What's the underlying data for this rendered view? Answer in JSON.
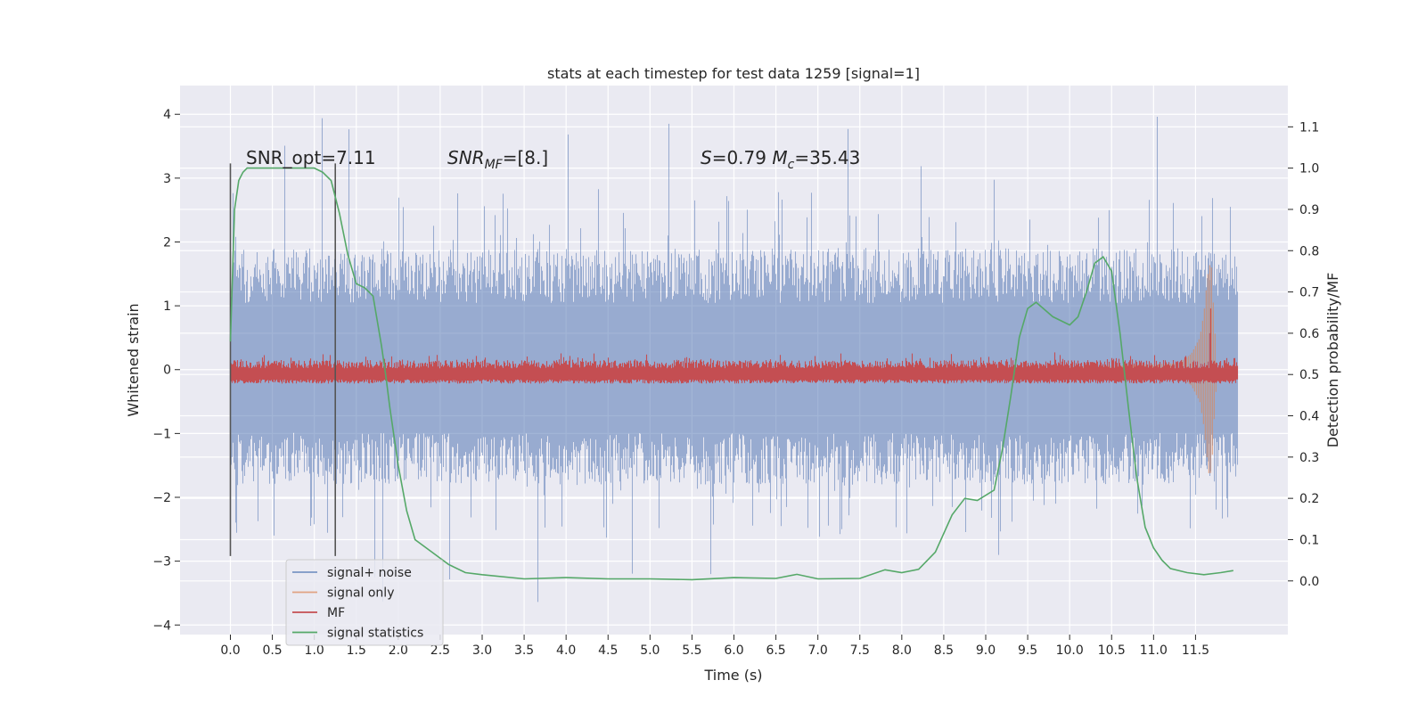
{
  "chart_data": {
    "type": "line",
    "title": "stats at each timestep for test data 1259 [signal=1]",
    "xlabel": "Time (s)",
    "ylabel": "Whitened strain",
    "y2label": "Detection probability/MF",
    "xlim": [
      -0.6,
      12.6
    ],
    "ylim": [
      -4.15,
      4.45
    ],
    "y2lim": [
      -0.13,
      1.2
    ],
    "xticks": [
      "0.0",
      "0.5",
      "1.0",
      "1.5",
      "2.0",
      "2.5",
      "3.0",
      "3.5",
      "4.0",
      "4.5",
      "5.0",
      "5.5",
      "6.0",
      "6.5",
      "7.0",
      "7.5",
      "8.0",
      "8.5",
      "9.0",
      "9.5",
      "10.0",
      "10.5",
      "11.0",
      "11.5"
    ],
    "yticks": [
      "4",
      "3",
      "2",
      "1",
      "0",
      "−1",
      "−2",
      "−3",
      "−4"
    ],
    "y2ticks": [
      "1.1",
      "1.0",
      "0.9",
      "0.8",
      "0.7",
      "0.6",
      "0.5",
      "0.4",
      "0.3",
      "0.2",
      "0.1",
      "0.0"
    ],
    "grid": true,
    "legend_position": "lower-left",
    "background": "#eaeaf2",
    "colors": {
      "signal_noise": "#4c72b0",
      "signal_only": "#dd8452",
      "mf": "#c44e52",
      "signal_statistics": "#55a868",
      "window_marker": "#555555"
    },
    "annotations": [
      {
        "parts": [
          {
            "t": "SNR_opt=7.11",
            "i": false
          }
        ]
      },
      {
        "parts": [
          {
            "t": "SNR",
            "i": true
          },
          {
            "t": "MF",
            "i": true,
            "sub": true
          },
          {
            "t": "=[8.]",
            "i": false
          }
        ]
      },
      {
        "parts": [
          {
            "t": "S",
            "i": true
          },
          {
            "t": "=0.79   ",
            "i": false
          },
          {
            "t": "M",
            "i": true
          },
          {
            "t": "c",
            "i": true,
            "sub": true
          },
          {
            "t": "=35.43",
            "i": false
          }
        ]
      }
    ],
    "window_markers": [
      0.0,
      1.25
    ],
    "series": [
      {
        "name": "signal+ noise",
        "x_range": [
          0.0,
          12.0
        ],
        "envelope": {
          "typical_min": -1.8,
          "typical_max": 1.9,
          "peak_max": 4.1,
          "peak_min": -3.7
        }
      },
      {
        "name": "signal only",
        "x": [
          11.3,
          11.45,
          11.55,
          11.6,
          11.63,
          11.66,
          11.69,
          11.72,
          11.75
        ],
        "amplitude": [
          0.1,
          0.25,
          0.5,
          0.9,
          1.3,
          1.65,
          1.6,
          0.8,
          0.2
        ]
      },
      {
        "name": "MF",
        "x_range": [
          0.0,
          12.0
        ],
        "baseline_y2": 0.5,
        "spike": {
          "x": 11.68,
          "y2": 0.66
        }
      },
      {
        "name": "signal statistics",
        "x": [
          0.0,
          0.05,
          0.1,
          0.15,
          0.2,
          0.3,
          0.5,
          0.8,
          1.0,
          1.1,
          1.2,
          1.3,
          1.4,
          1.5,
          1.6,
          1.7,
          1.75,
          1.8,
          1.85,
          1.9,
          2.0,
          2.1,
          2.2,
          2.4,
          2.6,
          2.8,
          3.0,
          3.5,
          4.0,
          4.5,
          5.0,
          5.5,
          6.0,
          6.5,
          6.75,
          7.0,
          7.5,
          7.8,
          8.0,
          8.2,
          8.4,
          8.6,
          8.75,
          8.9,
          9.1,
          9.2,
          9.3,
          9.4,
          9.5,
          9.6,
          9.8,
          10.0,
          10.1,
          10.2,
          10.3,
          10.4,
          10.5,
          10.6,
          10.7,
          10.8,
          10.9,
          11.0,
          11.1,
          11.2,
          11.4,
          11.6,
          11.8,
          11.95
        ],
        "y": [
          0.58,
          0.9,
          0.97,
          0.99,
          1.0,
          1.0,
          1.0,
          1.0,
          1.0,
          0.99,
          0.97,
          0.89,
          0.79,
          0.72,
          0.71,
          0.69,
          0.63,
          0.57,
          0.5,
          0.42,
          0.28,
          0.17,
          0.1,
          0.07,
          0.04,
          0.02,
          0.015,
          0.005,
          0.008,
          0.005,
          0.005,
          0.003,
          0.008,
          0.006,
          0.016,
          0.005,
          0.006,
          0.027,
          0.02,
          0.028,
          0.07,
          0.16,
          0.2,
          0.195,
          0.22,
          0.32,
          0.45,
          0.59,
          0.66,
          0.675,
          0.64,
          0.62,
          0.64,
          0.7,
          0.77,
          0.785,
          0.75,
          0.6,
          0.42,
          0.25,
          0.13,
          0.08,
          0.05,
          0.03,
          0.02,
          0.015,
          0.02,
          0.025
        ]
      }
    ]
  }
}
